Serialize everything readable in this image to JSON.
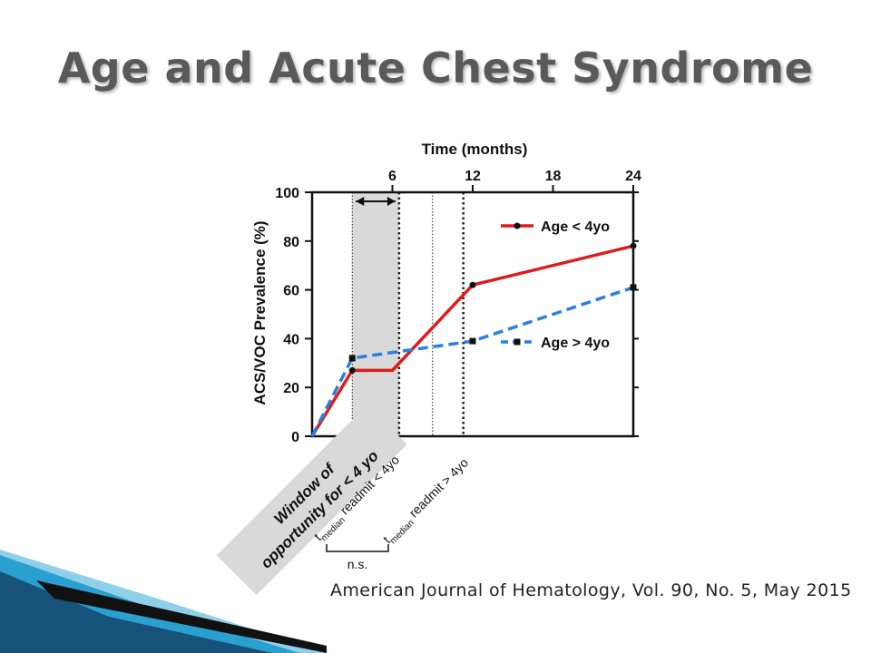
{
  "slide": {
    "title": "Age and Acute Chest Syndrome",
    "citation": "American Journal of Hematology, Vol. 90, No. 5, May 2015"
  },
  "colors": {
    "age_under_4": "#dd1c1c",
    "age_over_4": "#2b7fe0",
    "window_shade": "#d9d9d9",
    "accent_blue": "#1a7fa6"
  },
  "chart_data": {
    "type": "line",
    "xlabel": "Time (months)",
    "ylabel": "ACS/VOC Prevalence (%)",
    "xlim": [
      0,
      24
    ],
    "ylim": [
      0,
      100
    ],
    "xticks": [
      6,
      12,
      18,
      24
    ],
    "yticks": [
      0,
      20,
      40,
      60,
      80,
      100
    ],
    "grid": false,
    "legend_position": "right",
    "series": [
      {
        "name": "Age < 4yo",
        "style": "solid",
        "marker": "circle",
        "x": [
          0,
          3,
          6,
          12,
          24
        ],
        "y": [
          0,
          27,
          27,
          62,
          78
        ]
      },
      {
        "name": "Age > 4yo",
        "style": "dashed",
        "marker": "square",
        "x": [
          0,
          3,
          12,
          24
        ],
        "y": [
          0,
          32,
          39,
          61
        ]
      }
    ],
    "window": {
      "x_start": 3,
      "x_end": 6.5,
      "label": "Window of opportunity for < 4 yo"
    },
    "vlines": [
      {
        "x": 3,
        "style": "dotted-thin"
      },
      {
        "x": 6.5,
        "style": "dotted"
      },
      {
        "x": 9,
        "style": "dotted-thin"
      },
      {
        "x": 11.3,
        "style": "dotted"
      }
    ],
    "annotations": {
      "readmit_under": {
        "t": "t",
        "sub": "median",
        "rest": " readmit < 4yo"
      },
      "readmit_over": {
        "t": "t",
        "sub": "median",
        "rest": " readmit > 4yo"
      },
      "ns": "n.s."
    }
  }
}
